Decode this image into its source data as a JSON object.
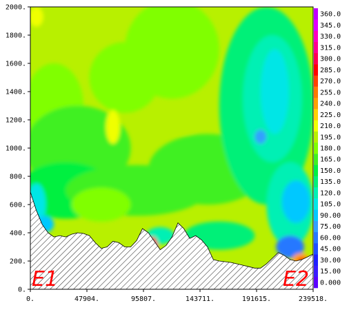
{
  "chart_data": {
    "type": "heatmap",
    "title": "",
    "xlabel": "",
    "ylabel": "",
    "x_ticks": [
      "0.",
      "47904.",
      "95807.",
      "143711.",
      "191615.",
      "239518."
    ],
    "y_ticks": [
      "0.",
      "200.",
      "400.",
      "600.",
      "800.",
      "1000.",
      "1200.",
      "1400.",
      "1600.",
      "1800.",
      "2000."
    ],
    "xlim": [
      0,
      239518
    ],
    "ylim": [
      0,
      2000
    ],
    "colorbar": {
      "labels": [
        "0.000",
        "15.00",
        "30.00",
        "45.00",
        "60.00",
        "75.00",
        "90.00",
        "105.0",
        "120.0",
        "135.0",
        "150.0",
        "165.0",
        "180.0",
        "195.0",
        "210.0",
        "225.0",
        "240.0",
        "255.0",
        "270.0",
        "285.0",
        "300.0",
        "315.0",
        "330.0",
        "345.0",
        "360.0"
      ],
      "colors": [
        "#5a00ff",
        "#3a1cff",
        "#2020ff",
        "#2050ff",
        "#2878ff",
        "#30a0ff",
        "#00c8ff",
        "#00e6e6",
        "#00f0b4",
        "#00f078",
        "#00f040",
        "#40f020",
        "#80ff00",
        "#b8f000",
        "#f0ff00",
        "#ffd000",
        "#ffa000",
        "#ff7800",
        "#ff4000",
        "#ff0000",
        "#ff0050",
        "#ff0090",
        "#ff00c0",
        "#e000ff",
        "#c000ff"
      ]
    },
    "terrain": {
      "x": [
        0,
        5000,
        10000,
        15000,
        20000,
        25000,
        30000,
        35000,
        40000,
        45000,
        50000,
        55000,
        60000,
        65000,
        70000,
        75000,
        80000,
        85000,
        90000,
        95000,
        100000,
        105000,
        110000,
        115000,
        120000,
        125000,
        130000,
        135000,
        140000,
        145000,
        150000,
        155000,
        160000,
        165000,
        170000,
        175000,
        180000,
        185000,
        190000,
        195000,
        200000,
        205000,
        210000,
        215000,
        220000,
        225000,
        230000,
        235000,
        239518
      ],
      "y": [
        690,
        560,
        460,
        400,
        370,
        380,
        370,
        390,
        400,
        395,
        380,
        330,
        290,
        300,
        340,
        330,
        300,
        300,
        345,
        430,
        400,
        340,
        280,
        310,
        370,
        470,
        430,
        360,
        380,
        350,
        300,
        210,
        200,
        195,
        190,
        180,
        170,
        160,
        150,
        150,
        180,
        220,
        260,
        240,
        210,
        200,
        210,
        230,
        250
      ]
    },
    "regions": [
      {
        "name": "E1",
        "label": "E1"
      },
      {
        "name": "E2",
        "label": "E2"
      }
    ]
  }
}
